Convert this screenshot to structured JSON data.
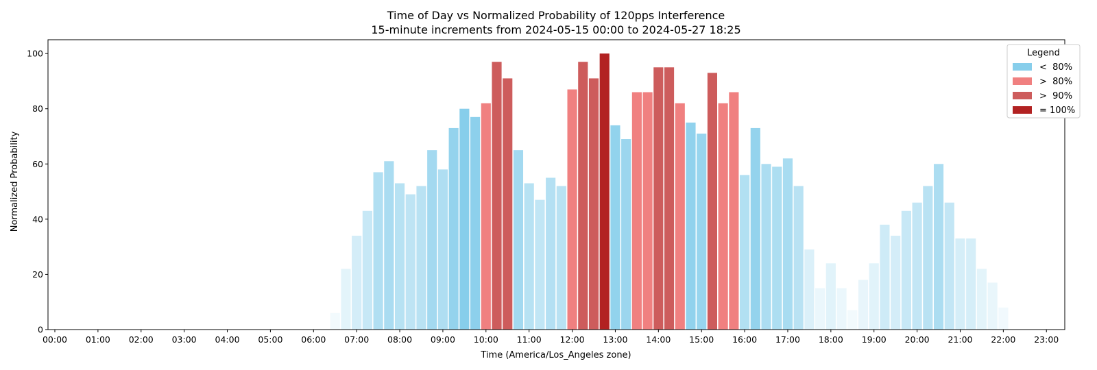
{
  "chart_data": {
    "type": "bar",
    "title": "Time of Day vs Normalized Probability of 120pps Interference",
    "subtitle": "15-minute increments from 2024-05-15 00:00 to 2024-05-27 18:25",
    "xlabel": "Time (America/Los_Angeles zone)",
    "ylabel": "Normalized Probability",
    "ylim": [
      0,
      105
    ],
    "xlim": [
      "00:00",
      "23:45"
    ],
    "grid": false,
    "x_ticks": [
      "00:00",
      "01:00",
      "02:00",
      "03:00",
      "04:00",
      "05:00",
      "06:00",
      "07:00",
      "08:00",
      "09:00",
      "10:00",
      "11:00",
      "12:00",
      "13:00",
      "14:00",
      "15:00",
      "16:00",
      "17:00",
      "18:00",
      "19:00",
      "20:00",
      "21:00",
      "22:00",
      "23:00"
    ],
    "y_ticks": [
      0,
      20,
      40,
      60,
      80,
      100
    ],
    "legend": {
      "title": "Legend",
      "placement": "top-right",
      "entries": [
        {
          "label": "<  80%",
          "color": "#87ceeb"
        },
        {
          "label": ">  80%",
          "color": "#f08080"
        },
        {
          "label": ">  90%",
          "color": "#cd5c5c"
        },
        {
          "label": "= 100%",
          "color": "#b22222"
        }
      ]
    },
    "bars": [
      {
        "x": "06:30",
        "value": 6
      },
      {
        "x": "06:45",
        "value": 22
      },
      {
        "x": "07:00",
        "value": 34
      },
      {
        "x": "07:15",
        "value": 43
      },
      {
        "x": "07:30",
        "value": 57
      },
      {
        "x": "07:45",
        "value": 61
      },
      {
        "x": "08:00",
        "value": 53
      },
      {
        "x": "08:15",
        "value": 49
      },
      {
        "x": "08:30",
        "value": 52
      },
      {
        "x": "08:45",
        "value": 65
      },
      {
        "x": "09:00",
        "value": 58
      },
      {
        "x": "09:15",
        "value": 73
      },
      {
        "x": "09:30",
        "value": 80
      },
      {
        "x": "09:45",
        "value": 77
      },
      {
        "x": "10:00",
        "value": 82
      },
      {
        "x": "10:15",
        "value": 97
      },
      {
        "x": "10:30",
        "value": 91
      },
      {
        "x": "10:45",
        "value": 65
      },
      {
        "x": "11:00",
        "value": 53
      },
      {
        "x": "11:15",
        "value": 47
      },
      {
        "x": "11:30",
        "value": 55
      },
      {
        "x": "11:45",
        "value": 52
      },
      {
        "x": "12:00",
        "value": 87
      },
      {
        "x": "12:15",
        "value": 97
      },
      {
        "x": "12:30",
        "value": 91
      },
      {
        "x": "12:45",
        "value": 100
      },
      {
        "x": "13:00",
        "value": 74
      },
      {
        "x": "13:15",
        "value": 69
      },
      {
        "x": "13:30",
        "value": 86
      },
      {
        "x": "13:45",
        "value": 86
      },
      {
        "x": "14:00",
        "value": 95
      },
      {
        "x": "14:15",
        "value": 95
      },
      {
        "x": "14:30",
        "value": 82
      },
      {
        "x": "14:45",
        "value": 75
      },
      {
        "x": "15:00",
        "value": 71
      },
      {
        "x": "15:15",
        "value": 93
      },
      {
        "x": "15:30",
        "value": 82
      },
      {
        "x": "15:45",
        "value": 86
      },
      {
        "x": "16:00",
        "value": 56
      },
      {
        "x": "16:15",
        "value": 73
      },
      {
        "x": "16:30",
        "value": 60
      },
      {
        "x": "16:45",
        "value": 59
      },
      {
        "x": "17:00",
        "value": 62
      },
      {
        "x": "17:15",
        "value": 52
      },
      {
        "x": "17:30",
        "value": 29
      },
      {
        "x": "17:45",
        "value": 15
      },
      {
        "x": "18:00",
        "value": 24
      },
      {
        "x": "18:15",
        "value": 15
      },
      {
        "x": "18:30",
        "value": 7
      },
      {
        "x": "18:45",
        "value": 18
      },
      {
        "x": "19:00",
        "value": 24
      },
      {
        "x": "19:15",
        "value": 38
      },
      {
        "x": "19:30",
        "value": 34
      },
      {
        "x": "19:45",
        "value": 43
      },
      {
        "x": "20:00",
        "value": 46
      },
      {
        "x": "20:15",
        "value": 52
      },
      {
        "x": "20:30",
        "value": 60
      },
      {
        "x": "20:45",
        "value": 46
      },
      {
        "x": "21:00",
        "value": 33
      },
      {
        "x": "21:15",
        "value": 33
      },
      {
        "x": "21:30",
        "value": 22
      },
      {
        "x": "21:45",
        "value": 17
      },
      {
        "x": "22:00",
        "value": 8
      }
    ]
  }
}
